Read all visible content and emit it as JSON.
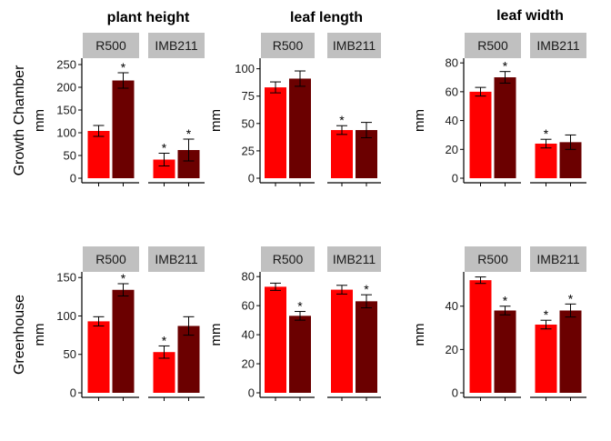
{
  "chart_data": {
    "type": "bar",
    "columns": [
      "plant height",
      "leaf length",
      "leaf width"
    ],
    "rows": [
      "Growth Chamber",
      "Greenhouse"
    ],
    "ylabel": "mm",
    "groups": [
      "R500",
      "IMB211"
    ],
    "colors": {
      "first_bar": "#ff0000",
      "second_bar": "#6b0000",
      "strip": "#c0c0c0",
      "axis": "#000000"
    },
    "significance_marker": "*",
    "panels": [
      {
        "row": "Growth Chamber",
        "column": "plant height",
        "ylim": [
          0,
          260
        ],
        "yticks": [
          0,
          50,
          100,
          150,
          200,
          250
        ],
        "groups": [
          {
            "label": "R500",
            "bars": [
              {
                "value": 104,
                "err": 12,
                "sig": false
              },
              {
                "value": 215,
                "err": 17,
                "sig": true
              }
            ]
          },
          {
            "label": "IMB211",
            "bars": [
              {
                "value": 41,
                "err": 14,
                "sig": true
              },
              {
                "value": 62,
                "err": 24,
                "sig": true
              }
            ]
          }
        ]
      },
      {
        "row": "Growth Chamber",
        "column": "leaf length",
        "ylim": [
          0,
          108
        ],
        "yticks": [
          0,
          25,
          50,
          75,
          100
        ],
        "groups": [
          {
            "label": "R500",
            "bars": [
              {
                "value": 83,
                "err": 5,
                "sig": false
              },
              {
                "value": 91,
                "err": 7,
                "sig": false
              }
            ]
          },
          {
            "label": "IMB211",
            "bars": [
              {
                "value": 44,
                "err": 4,
                "sig": true
              },
              {
                "value": 44,
                "err": 7,
                "sig": false
              }
            ]
          }
        ]
      },
      {
        "row": "Growth Chamber",
        "column": "leaf width",
        "ylim": [
          0,
          82
        ],
        "yticks": [
          0,
          20,
          40,
          60,
          80
        ],
        "groups": [
          {
            "label": "R500",
            "bars": [
              {
                "value": 60,
                "err": 3,
                "sig": false
              },
              {
                "value": 70,
                "err": 4,
                "sig": true
              }
            ]
          },
          {
            "label": "IMB211",
            "bars": [
              {
                "value": 24,
                "err": 3,
                "sig": true
              },
              {
                "value": 25,
                "err": 5,
                "sig": false
              }
            ]
          }
        ]
      },
      {
        "row": "Greenhouse",
        "column": "plant height",
        "ylim": [
          0,
          155
        ],
        "yticks": [
          0,
          50,
          100,
          150
        ],
        "groups": [
          {
            "label": "R500",
            "bars": [
              {
                "value": 93,
                "err": 6,
                "sig": false
              },
              {
                "value": 134,
                "err": 8,
                "sig": true
              }
            ]
          },
          {
            "label": "IMB211",
            "bars": [
              {
                "value": 53,
                "err": 8,
                "sig": true
              },
              {
                "value": 87,
                "err": 12,
                "sig": false
              }
            ]
          }
        ]
      },
      {
        "row": "Greenhouse",
        "column": "leaf length",
        "ylim": [
          0,
          82
        ],
        "yticks": [
          0,
          20,
          40,
          60,
          80
        ],
        "groups": [
          {
            "label": "R500",
            "bars": [
              {
                "value": 73,
                "err": 2.5,
                "sig": false
              },
              {
                "value": 53,
                "err": 3,
                "sig": true
              }
            ]
          },
          {
            "label": "IMB211",
            "bars": [
              {
                "value": 71,
                "err": 3,
                "sig": false
              },
              {
                "value": 63,
                "err": 4.5,
                "sig": true
              }
            ]
          }
        ]
      },
      {
        "row": "Greenhouse",
        "column": "leaf width",
        "ylim": [
          0,
          55
        ],
        "yticks": [
          0,
          20,
          40
        ],
        "groups": [
          {
            "label": "R500",
            "bars": [
              {
                "value": 52,
                "err": 1.5,
                "sig": false
              },
              {
                "value": 38,
                "err": 2,
                "sig": true
              }
            ]
          },
          {
            "label": "IMB211",
            "bars": [
              {
                "value": 31.5,
                "err": 2,
                "sig": true
              },
              {
                "value": 38,
                "err": 3,
                "sig": true
              }
            ]
          }
        ]
      }
    ]
  }
}
